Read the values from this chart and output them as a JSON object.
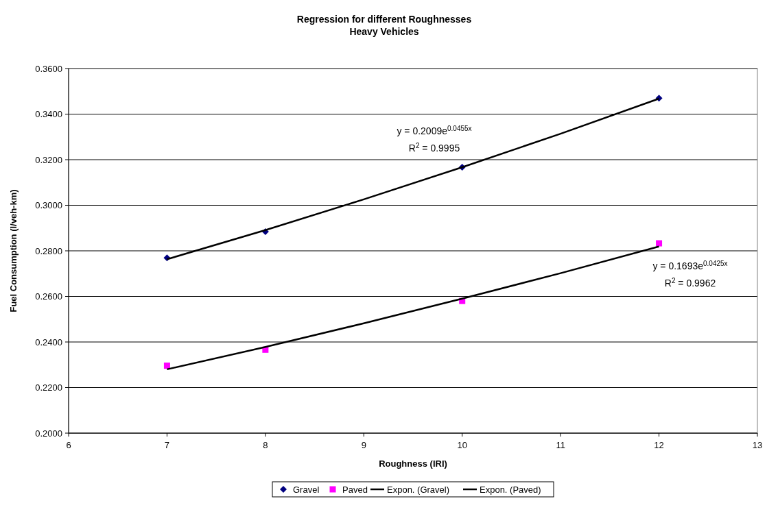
{
  "chart_data": {
    "type": "scatter",
    "title": "Regression for different Roughnesses",
    "subtitle": "Heavy Vehicles",
    "xlabel": "Roughness (IRI)",
    "ylabel": "Fuel Consumption (l/veh-km)",
    "xlim": [
      6,
      13
    ],
    "xticks": [
      6,
      7,
      8,
      9,
      10,
      11,
      12,
      13
    ],
    "ylim": [
      0.2,
      0.36
    ],
    "yticks": [
      {
        "value": 0.2,
        "label": "0.2000"
      },
      {
        "value": 0.22,
        "label": "0.2200"
      },
      {
        "value": 0.24,
        "label": "0.2400"
      },
      {
        "value": 0.26,
        "label": "0.2600"
      },
      {
        "value": 0.28,
        "label": "0.2800"
      },
      {
        "value": 0.3,
        "label": "0.3000"
      },
      {
        "value": 0.32,
        "label": "0.3200"
      },
      {
        "value": 0.34,
        "label": "0.3400"
      },
      {
        "value": 0.36,
        "label": "0.3600"
      }
    ],
    "grid": "y",
    "legend": "bottom",
    "series": [
      {
        "name": "Gravel",
        "marker": "diamond",
        "color": "#000080",
        "x": [
          7,
          8,
          10,
          12
        ],
        "values": [
          0.2769,
          0.2884,
          0.3167,
          0.347
        ]
      },
      {
        "name": "Paved",
        "marker": "square",
        "color": "#ff00ff",
        "x": [
          7,
          8,
          10,
          12
        ],
        "values": [
          0.2296,
          0.2366,
          0.258,
          0.2833
        ]
      },
      {
        "name": "Expon. (Gravel)",
        "type": "line",
        "marker": "none",
        "line_style": "solid",
        "color": "#000000",
        "x": [
          7,
          8,
          9,
          10,
          11,
          12
        ],
        "values": [
          0.2763,
          0.2891,
          0.3026,
          0.3167,
          0.3314,
          0.3468
        ]
      },
      {
        "name": "Expon. (Paved)",
        "type": "line",
        "marker": "none",
        "line_style": "solid",
        "color": "#000000",
        "x": [
          7,
          8,
          9,
          10,
          11,
          12
        ],
        "values": [
          0.228,
          0.2378,
          0.2482,
          0.259,
          0.2702,
          0.2819
        ]
      }
    ],
    "annotations": [
      "y = 0.2009e$^{0.0455x}$",
      "R$^{2}$ = 0.9995",
      "y = 0.1693e$^{0.0425x}$",
      "R$^{2}$ = 0.9962"
    ]
  }
}
